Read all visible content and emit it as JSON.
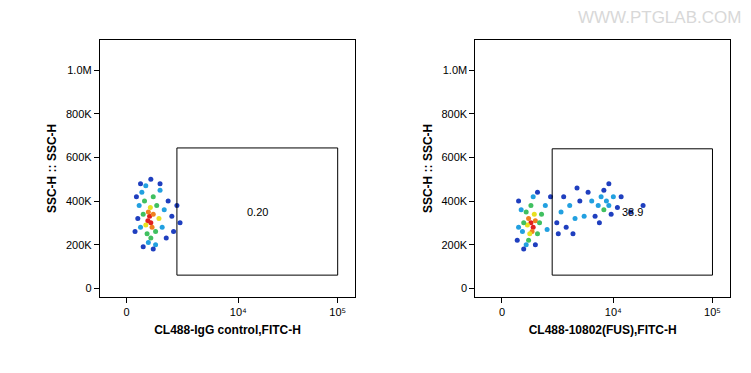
{
  "watermark": "WWW.PTGLAB.COM",
  "chart_data": [
    {
      "type": "scatter",
      "grid": false,
      "x_label": "CL488-IgG control,FITC-H",
      "y_label": "SSC-H :: SSC-H",
      "xlim": [
        -1000,
        150000
      ],
      "ylim": [
        -40000,
        1140000
      ],
      "xticks": [
        0,
        {
          "value": 10000,
          "label": "10⁴"
        },
        {
          "value": 100000,
          "label": "10⁵"
        }
      ],
      "yticks": [
        0,
        {
          "value": 200000,
          "label": "200K"
        },
        {
          "value": 400000,
          "label": "400K"
        },
        {
          "value": 600000,
          "label": "600K"
        },
        {
          "value": 800000,
          "label": "800K"
        },
        {
          "value": 1000000,
          "label": "1.0M"
        }
      ],
      "gate": {
        "x": [
          2200,
          100000
        ],
        "y": [
          60000,
          644000
        ],
        "label": "0.20"
      },
      "x": [
        850,
        900,
        800,
        950,
        780,
        1000,
        880,
        700,
        650,
        1100,
        750,
        1150,
        600,
        1000,
        900,
        1250,
        550,
        1300,
        700,
        500,
        1400,
        800,
        1100,
        1500,
        450,
        400,
        350,
        1700,
        1900,
        2200,
        2400,
        600,
        1000,
        1300,
        900,
        500,
        2000,
        300,
        1600
      ],
      "values": [
        330000,
        300000,
        350000,
        280000,
        310000,
        340000,
        370000,
        290000,
        400000,
        260000,
        250000,
        380000,
        340000,
        420000,
        230000,
        320000,
        440000,
        450000,
        470000,
        280000,
        280000,
        210000,
        200000,
        360000,
        380000,
        320000,
        420000,
        400000,
        330000,
        380000,
        300000,
        190000,
        180000,
        480000,
        500000,
        480000,
        260000,
        260000,
        230000
      ],
      "colors": [
        "#e02020",
        "#e02020",
        "#f08020",
        "#f08020",
        "#e02020",
        "#f08020",
        "#e8e020",
        "#e8e020",
        "#40c060",
        "#40c060",
        "#40c060",
        "#40c060",
        "#40c060",
        "#40c060",
        "#40c060",
        "#e8e020",
        "#22a0e0",
        "#22a0e0",
        "#22a0e0",
        "#22a0e0",
        "#22a0e0",
        "#22a0e0",
        "#22a0e0",
        "#22a0e0",
        "#22a0e0",
        "#1f3fbf",
        "#1f3fbf",
        "#1f3fbf",
        "#1f3fbf",
        "#1f3fbf",
        "#1f3fbf",
        "#1f3fbf",
        "#1f3fbf",
        "#1f3fbf",
        "#1f3fbf",
        "#1f3fbf",
        "#1f3fbf",
        "#1f3fbf",
        "#1f3fbf"
      ]
    },
    {
      "type": "scatter",
      "grid": false,
      "x_label": "CL488-10802(FUS),FITC-H",
      "y_label": "SSC-H :: SSC-H",
      "xlim": [
        -1000,
        150000
      ],
      "ylim": [
        -40000,
        1140000
      ],
      "xticks": [
        0,
        {
          "value": 10000,
          "label": "10⁴"
        },
        {
          "value": 100000,
          "label": "10⁵"
        }
      ],
      "yticks": [
        0,
        {
          "value": 200000,
          "label": "200K"
        },
        {
          "value": 400000,
          "label": "400K"
        },
        {
          "value": 600000,
          "label": "600K"
        },
        {
          "value": 800000,
          "label": "800K"
        },
        {
          "value": 1000000,
          "label": "1.0M"
        }
      ],
      "gate": {
        "x": [
          2200,
          100000
        ],
        "y": [
          60000,
          640000
        ],
        "label": "38.9"
      },
      "x": [
        1100,
        1200,
        1000,
        1300,
        1150,
        950,
        1250,
        1050,
        800,
        1500,
        900,
        1400,
        1100,
        1000,
        1600,
        750,
        600,
        700,
        1800,
        1900,
        1200,
        900,
        550,
        600,
        2100,
        1400,
        800,
        1300,
        2500,
        2800,
        3200,
        3500,
        3000,
        4000,
        4500,
        2600,
        3800,
        5000,
        5500,
        4200,
        7000,
        8000,
        8500,
        9000,
        7500,
        9500,
        6500,
        10000,
        8000,
        11000,
        6000,
        7200,
        12000,
        9000,
        15000,
        20000
      ],
      "values": [
        300000,
        280000,
        320000,
        310000,
        260000,
        290000,
        340000,
        250000,
        300000,
        300000,
        350000,
        250000,
        380000,
        220000,
        340000,
        260000,
        280000,
        360000,
        380000,
        270000,
        420000,
        200000,
        220000,
        400000,
        420000,
        440000,
        180000,
        200000,
        300000,
        350000,
        280000,
        380000,
        420000,
        320000,
        400000,
        250000,
        250000,
        330000,
        440000,
        460000,
        380000,
        360000,
        400000,
        380000,
        420000,
        340000,
        330000,
        420000,
        450000,
        370000,
        400000,
        300000,
        420000,
        480000,
        350000,
        380000
      ],
      "colors": [
        "#e02020",
        "#e02020",
        "#f08020",
        "#f08020",
        "#f08020",
        "#e8e020",
        "#e8e020",
        "#e8e020",
        "#40c060",
        "#40c060",
        "#40c060",
        "#40c060",
        "#40c060",
        "#40c060",
        "#40c060",
        "#22a0e0",
        "#22a0e0",
        "#22a0e0",
        "#22a0e0",
        "#22a0e0",
        "#22a0e0",
        "#22a0e0",
        "#1f3fbf",
        "#1f3fbf",
        "#1f3fbf",
        "#1f3fbf",
        "#1f3fbf",
        "#1f3fbf",
        "#1f3fbf",
        "#22a0e0",
        "#1f3fbf",
        "#22a0e0",
        "#1f3fbf",
        "#22a0e0",
        "#1f3fbf",
        "#1f3fbf",
        "#1f3fbf",
        "#22a0e0",
        "#1f3fbf",
        "#1f3fbf",
        "#22a0e0",
        "#40c060",
        "#22a0e0",
        "#22a0e0",
        "#22a0e0",
        "#1f3fbf",
        "#1f3fbf",
        "#22a0e0",
        "#1f3fbf",
        "#1f3fbf",
        "#22a0e0",
        "#1f3fbf",
        "#1f3fbf",
        "#1f3fbf",
        "#1f3fbf",
        "#1f3fbf"
      ]
    }
  ]
}
